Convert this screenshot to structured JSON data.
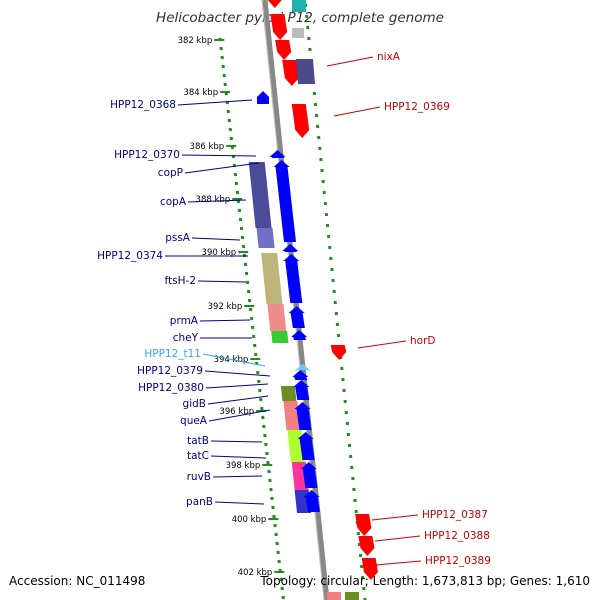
{
  "title": "Helicobacter pylori P12, complete genome",
  "footer": {
    "accession": "Accession: NC_011498",
    "topology": "Topology: circular; Length: 1,673,813 bp; Genes: 1,610"
  },
  "kbp_labels": [
    "382 kbp",
    "384 kbp",
    "386 kbp",
    "388 kbp",
    "390 kbp",
    "392 kbp",
    "394 kbp",
    "396 kbp",
    "398 kbp",
    "400 kbp",
    "402 kbp"
  ],
  "genes": {
    "left": [
      {
        "label": "HPP12_0368",
        "color": "#00008b"
      },
      {
        "label": "HPP12_0370",
        "color": "#00008b"
      },
      {
        "label": "copP",
        "color": "#00008b"
      },
      {
        "label": "copA",
        "color": "#00008b"
      },
      {
        "label": "pssA",
        "color": "#00008b"
      },
      {
        "label": "HPP12_0374",
        "color": "#00008b"
      },
      {
        "label": "ftsH-2",
        "color": "#00008b"
      },
      {
        "label": "prmA",
        "color": "#00008b"
      },
      {
        "label": "cheY",
        "color": "#00008b"
      },
      {
        "label": "HPP12_t11",
        "color": "#33aadd"
      },
      {
        "label": "HPP12_0379",
        "color": "#00008b"
      },
      {
        "label": "HPP12_0380",
        "color": "#00008b"
      },
      {
        "label": "gidB",
        "color": "#00008b"
      },
      {
        "label": "queA",
        "color": "#00008b"
      },
      {
        "label": "tatB",
        "color": "#00008b"
      },
      {
        "label": "tatC",
        "color": "#00008b"
      },
      {
        "label": "ruvB",
        "color": "#00008b"
      },
      {
        "label": "panB",
        "color": "#00008b"
      }
    ],
    "right": [
      {
        "label": "nixA",
        "color": "#cc0000"
      },
      {
        "label": "HPP12_0369",
        "color": "#cc0000"
      },
      {
        "label": "horD",
        "color": "#cc0000"
      },
      {
        "label": "HPP12_0387",
        "color": "#cc0000"
      },
      {
        "label": "HPP12_0388",
        "color": "#cc0000"
      },
      {
        "label": "HPP12_0389",
        "color": "#cc0000"
      }
    ]
  },
  "colors": {
    "forward_strand": "#0000ff",
    "reverse_strand": "#ff0000",
    "backbone": "#888888",
    "tick": "#228b22"
  }
}
